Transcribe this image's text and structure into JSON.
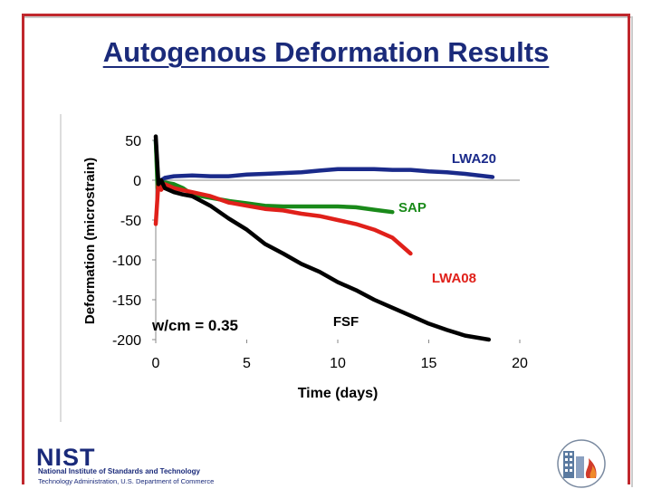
{
  "slide": {
    "title": "Autogenous Deformation Results",
    "frame_color": "#c0272d",
    "title_color": "#1a2a7a"
  },
  "footer": {
    "logo_text": "NIST",
    "org_line1": "National Institute of Standards and Technology",
    "org_line2": "Technology Administration, U.S. Department of Commerce",
    "seal_icon": "nist-building-fire-seal"
  },
  "chart_data": {
    "type": "line",
    "title": "",
    "xlabel": "Time (days)",
    "ylabel": "Deformation (microstrain)",
    "xlim": [
      0,
      20
    ],
    "ylim": [
      -200,
      50
    ],
    "xticks": [
      0,
      5,
      10,
      15,
      20
    ],
    "yticks": [
      50,
      0,
      -50,
      -100,
      -150,
      -200
    ],
    "grid": false,
    "annotations": [
      "w/cm = 0.35"
    ],
    "series": [
      {
        "name": "LWA20",
        "color": "#1a2a8a",
        "x": [
          0,
          0.1,
          0.2,
          0.3,
          0.5,
          1,
          2,
          3,
          4,
          5,
          6,
          7,
          8,
          9,
          10,
          11,
          12,
          13,
          14,
          15,
          16,
          17,
          18.5
        ],
        "y": [
          50,
          5,
          -10,
          0,
          3,
          5,
          6,
          5,
          5,
          7,
          8,
          9,
          10,
          12,
          14,
          14,
          14,
          13,
          13,
          11,
          10,
          8,
          4
        ]
      },
      {
        "name": "SAP",
        "color": "#1a8a1a",
        "x": [
          0,
          0.1,
          0.2,
          0.3,
          0.5,
          1,
          1.5,
          2,
          3,
          4,
          5,
          6,
          7,
          8,
          9,
          10,
          11,
          12,
          13
        ],
        "y": [
          50,
          -10,
          0,
          -5,
          -3,
          -5,
          -10,
          -18,
          -22,
          -26,
          -29,
          -32,
          -33,
          -33,
          -33,
          -33,
          -34,
          -37,
          -40
        ]
      },
      {
        "name": "LWA08",
        "color": "#e0201a",
        "x": [
          0,
          0.15,
          0.3,
          0.5,
          0.8,
          1,
          2,
          3,
          4,
          5,
          6,
          7,
          8,
          9,
          10,
          11,
          12,
          13,
          14
        ],
        "y": [
          -55,
          -2,
          -12,
          -5,
          -8,
          -10,
          -15,
          -20,
          -28,
          -32,
          -36,
          -38,
          -42,
          -45,
          -50,
          -55,
          -62,
          -72,
          -92
        ]
      },
      {
        "name": "FSF",
        "color": "#000000",
        "x": [
          0,
          0.15,
          0.3,
          0.5,
          1,
          1.5,
          2,
          3,
          4,
          5,
          6,
          7,
          8,
          9,
          10,
          11,
          12,
          13,
          14,
          15,
          16,
          17,
          18.3
        ],
        "y": [
          55,
          -5,
          0,
          -10,
          -15,
          -18,
          -20,
          -32,
          -48,
          -62,
          -80,
          -92,
          -105,
          -115,
          -128,
          -138,
          -150,
          -160,
          -170,
          -180,
          -188,
          -195,
          -200
        ]
      }
    ]
  }
}
